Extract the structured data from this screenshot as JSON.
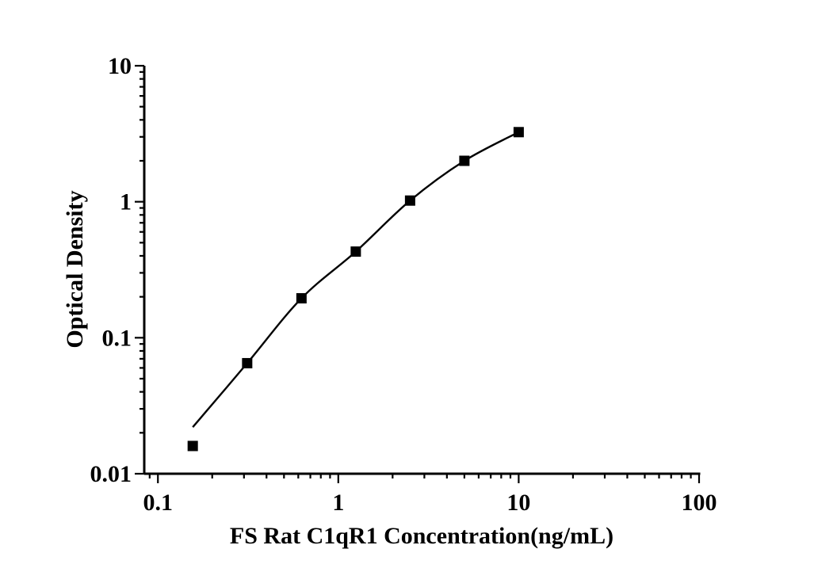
{
  "chart_data": {
    "type": "scatter",
    "title": "",
    "xlabel": "FS Rat C1qR1 Concentration(ng/mL)",
    "ylabel": "Optical Density",
    "x_scale": "log",
    "y_scale": "log",
    "xlim": [
      0.084,
      100
    ],
    "ylim": [
      0.01,
      10
    ],
    "x_ticks": [
      0.1,
      1,
      10,
      100
    ],
    "x_tick_labels": [
      "0.1",
      "1",
      "10",
      "100"
    ],
    "y_ticks": [
      0.01,
      0.1,
      1,
      10
    ],
    "y_tick_labels": [
      "0.01",
      "0.1",
      "1",
      "10"
    ],
    "grid": false,
    "legend_position": "none",
    "series": [
      {
        "name": "standard-data-points",
        "type": "scatter",
        "marker": "filled-square",
        "color": "#000000",
        "x": [
          0.156,
          0.3125,
          0.625,
          1.25,
          2.5,
          5,
          10
        ],
        "y": [
          0.016,
          0.065,
          0.195,
          0.43,
          1.02,
          2.0,
          3.25
        ]
      },
      {
        "name": "fitted-standard-curve",
        "type": "line",
        "color": "#000000",
        "x": [
          0.156,
          0.3125,
          0.625,
          1.25,
          2.5,
          5,
          10
        ],
        "y": [
          0.022,
          0.065,
          0.195,
          0.43,
          1.02,
          2.0,
          3.25
        ]
      }
    ]
  },
  "colors": {
    "background": "#ffffff",
    "axis": "#000000",
    "text": "#000000"
  }
}
